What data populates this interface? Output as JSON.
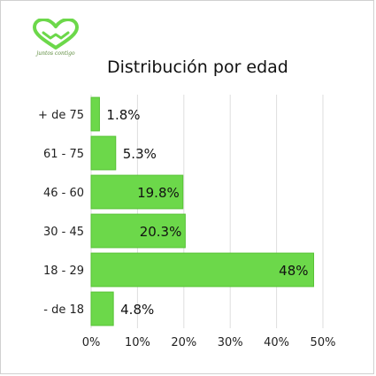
{
  "logo": {
    "icon": "heart-hands-icon",
    "caption": "juntos contigo"
  },
  "colors": {
    "bar": "#6cd84a",
    "bar_edge": "#57c236",
    "grid": "#dedede",
    "logo": "#6cd84a"
  },
  "chart_data": {
    "type": "bar",
    "orientation": "horizontal",
    "title": "Distribución por edad",
    "xlabel": "",
    "ylabel": "",
    "categories": [
      "+ de 75",
      "61 - 75",
      "46 - 60",
      "30 - 45",
      "18 - 29",
      "- de 18"
    ],
    "values": [
      1.8,
      5.3,
      19.8,
      20.3,
      48,
      4.8
    ],
    "data_labels": [
      "1.8%",
      "5.3%",
      "19.8%",
      "20.3%",
      "48%",
      "4.8%"
    ],
    "xlim": [
      0,
      50
    ],
    "xticks": [
      0,
      10,
      20,
      30,
      40,
      50
    ],
    "xtick_labels": [
      "0%",
      "10%",
      "20%",
      "30%",
      "40%",
      "50%"
    ],
    "grid": true,
    "legend": "none"
  }
}
